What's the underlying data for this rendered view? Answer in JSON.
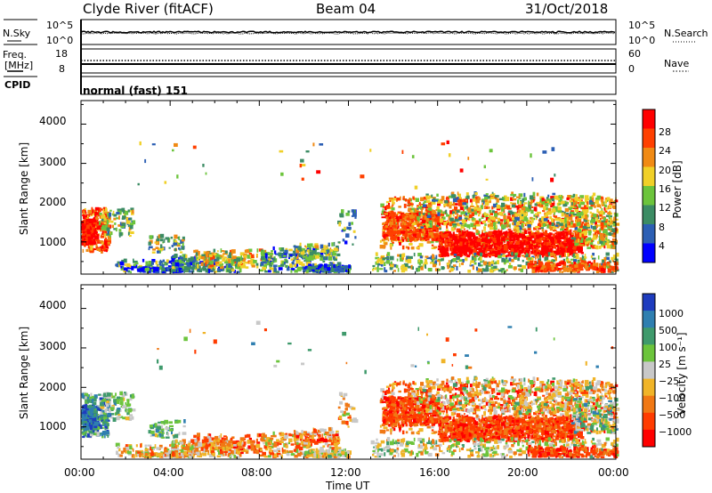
{
  "header": {
    "station": "Clyde River (fitACF)",
    "beam": "Beam 04",
    "date": "31/Oct/2018"
  },
  "strip_panels": {
    "noise_left_label": "N.Sky",
    "noise_left_ticks": [
      "10^5",
      "10^0"
    ],
    "noise_right_label": "N.Search",
    "noise_right_ticks": [
      "10^5",
      "10^0"
    ],
    "freq_label_line1": "Freq.",
    "freq_label_line2": "[MHz]",
    "freq_left_ticks": [
      "18",
      "8"
    ],
    "nave_label": "Nave",
    "nave_right_ticks": [
      "60",
      "0"
    ],
    "cpid_label": "CPID",
    "cpid_value": "normal (fast) 151"
  },
  "chart_data": [
    {
      "type": "heatmap",
      "panel": "power",
      "ylabel": "Slant Range [km]",
      "yticks": [
        "1000",
        "2000",
        "3000",
        "4000"
      ],
      "ylim": [
        180,
        4600
      ],
      "xlim_hours": [
        0,
        24
      ],
      "colorbar_label": "Power [dB]",
      "colorbar_ticks": [
        "4",
        "8",
        "12",
        "16",
        "20",
        "24",
        "28"
      ],
      "colorbar_colors": [
        "#0000ff",
        "#2c5fb4",
        "#3c8c64",
        "#6cc43c",
        "#f0d028",
        "#f08a14",
        "#ff4000",
        "#ff0000"
      ]
    },
    {
      "type": "heatmap",
      "panel": "velocity",
      "ylabel": "Slant Range [km]",
      "yticks": [
        "1000",
        "2000",
        "3000",
        "4000"
      ],
      "ylim": [
        180,
        4600
      ],
      "xlim_hours": [
        0,
        24
      ],
      "xticks": [
        "00:00",
        "04:00",
        "08:00",
        "12:00",
        "16:00",
        "20:00",
        "00:00"
      ],
      "xlabel": "Time UT",
      "colorbar_label": "Velocity [m s⁻¹]",
      "colorbar_ticks": [
        "1000",
        "500",
        "100",
        "25",
        "−25",
        "−100",
        "−500",
        "−1000"
      ],
      "colorbar_colors": [
        "#1e3cbe",
        "#2f7fb0",
        "#3f9a6c",
        "#6cc43c",
        "#c8c8c8",
        "#f0b428",
        "#f07814",
        "#ff3c00",
        "#ff0000"
      ]
    }
  ]
}
